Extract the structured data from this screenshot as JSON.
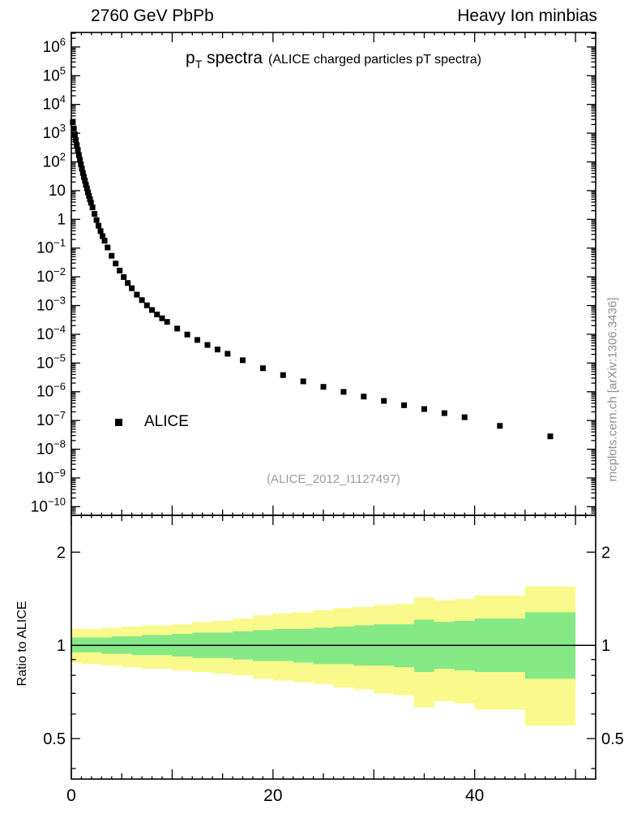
{
  "header": {
    "left": "2760 GeV PbPb",
    "right": "Heavy Ion minbias"
  },
  "watermark": "mcplots.cern.ch [arXiv:1306.3436]",
  "main_plot": {
    "title_p": "p",
    "title_sub": "T",
    "title_rest": " spectra",
    "title_paren": "(ALICE charged particles pT spectra)",
    "annotation": "(ALICE_2012_I1127497)",
    "legend": [
      {
        "label": "ALICE",
        "marker": "filled-square",
        "color": "#000000"
      }
    ]
  },
  "ratio_plot": {
    "ylabel": "Ratio to ALICE"
  },
  "colors": {
    "marker": "#000000",
    "outer_band": "#fafa8c",
    "inner_band": "#85e985",
    "gray_text": "#9c9c9c",
    "watermark_text": "#8e8e8e"
  },
  "chart_data": [
    {
      "type": "scatter",
      "title": "pT spectra (ALICE charged particles pT spectra)",
      "xlabel": "",
      "ylabel": "",
      "xlim": [
        0,
        52
      ],
      "ylog": true,
      "ylim": [
        5e-11,
        3200000.0
      ],
      "ytick_exponent_range": [
        -10,
        6
      ],
      "xticks_labeled": [
        0,
        20,
        40
      ],
      "legend_position": "left-lower",
      "grid": false,
      "series": [
        {
          "name": "ALICE",
          "marker": "filled-square",
          "color": "#000000",
          "x": [
            0.15,
            0.25,
            0.35,
            0.45,
            0.55,
            0.65,
            0.75,
            0.85,
            0.95,
            1.05,
            1.15,
            1.25,
            1.35,
            1.45,
            1.55,
            1.65,
            1.75,
            1.85,
            1.95,
            2.1,
            2.3,
            2.5,
            2.7,
            2.9,
            3.1,
            3.3,
            3.6,
            4.0,
            4.4,
            4.8,
            5.2,
            5.6,
            6.0,
            6.5,
            7.0,
            7.5,
            8.0,
            8.5,
            9.0,
            9.5,
            10.5,
            11.5,
            12.5,
            13.5,
            14.5,
            15.5,
            17.0,
            19.0,
            21.0,
            23.0,
            25.0,
            27.0,
            29.0,
            31.0,
            33.0,
            35.0,
            37.0,
            39.0,
            42.5,
            47.5
          ],
          "y": [
            2400,
            1450,
            900,
            580,
            380,
            255,
            172,
            118,
            82,
            58,
            41,
            30,
            22,
            16,
            12,
            8.8,
            6.6,
            5.0,
            3.8,
            2.6,
            1.55,
            0.95,
            0.6,
            0.39,
            0.26,
            0.18,
            0.105,
            0.054,
            0.029,
            0.0165,
            0.0098,
            0.0061,
            0.004,
            0.0024,
            0.00155,
            0.00102,
            0.0007,
            0.00049,
            0.00036,
            0.00027,
            0.000158,
            9.8e-05,
            6.35e-05,
            4.25e-05,
            2.95e-05,
            2.1e-05,
            1.25e-05,
            6.6e-06,
            3.8e-06,
            2.3e-06,
            1.48e-06,
            9.9e-07,
            6.8e-07,
            4.8e-07,
            3.4e-07,
            2.5e-07,
            1.8e-07,
            1.3e-07,
            6.5e-08,
            2.8e-08
          ]
        }
      ]
    },
    {
      "type": "band-ratio",
      "ylabel": "Ratio to ALICE",
      "ylog": true,
      "ylim": [
        0.37,
        2.63
      ],
      "xlim": [
        0,
        52
      ],
      "yticks_labeled": [
        0.5,
        1,
        2
      ],
      "yticks_minor": [
        0.4,
        0.6,
        0.7,
        0.8,
        0.9
      ],
      "reference_line": 1,
      "bin_edges": [
        0,
        1,
        2,
        3,
        4,
        5,
        6,
        7,
        8,
        10,
        12,
        14,
        16,
        18,
        20,
        22,
        24,
        26,
        28,
        30,
        32,
        34,
        36,
        38,
        40,
        45,
        50
      ],
      "bands": [
        {
          "name": "outer-uncertainty",
          "color": "#fafa8c",
          "lo": [
            0.88,
            0.87,
            0.87,
            0.86,
            0.86,
            0.85,
            0.85,
            0.84,
            0.84,
            0.83,
            0.82,
            0.81,
            0.8,
            0.78,
            0.77,
            0.76,
            0.75,
            0.73,
            0.72,
            0.7,
            0.69,
            0.63,
            0.66,
            0.65,
            0.62,
            0.55
          ],
          "hi": [
            1.13,
            1.13,
            1.13,
            1.14,
            1.14,
            1.15,
            1.15,
            1.16,
            1.16,
            1.17,
            1.19,
            1.2,
            1.22,
            1.25,
            1.27,
            1.28,
            1.3,
            1.32,
            1.33,
            1.35,
            1.36,
            1.43,
            1.4,
            1.41,
            1.45,
            1.55
          ]
        },
        {
          "name": "inner-uncertainty",
          "color": "#85e985",
          "lo": [
            0.95,
            0.95,
            0.95,
            0.94,
            0.94,
            0.94,
            0.93,
            0.93,
            0.93,
            0.92,
            0.91,
            0.91,
            0.9,
            0.89,
            0.89,
            0.88,
            0.87,
            0.87,
            0.86,
            0.86,
            0.85,
            0.82,
            0.84,
            0.83,
            0.82,
            0.78
          ],
          "hi": [
            1.06,
            1.06,
            1.06,
            1.06,
            1.07,
            1.07,
            1.07,
            1.08,
            1.08,
            1.09,
            1.1,
            1.1,
            1.11,
            1.12,
            1.13,
            1.13,
            1.14,
            1.15,
            1.16,
            1.17,
            1.17,
            1.21,
            1.19,
            1.2,
            1.22,
            1.28
          ]
        }
      ]
    }
  ]
}
